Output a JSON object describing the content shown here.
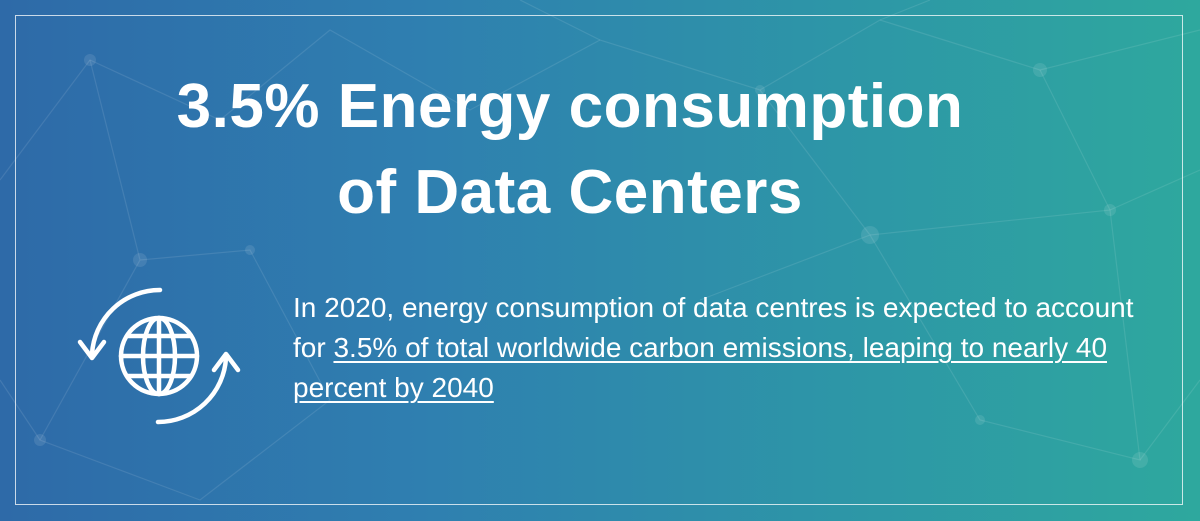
{
  "headline": {
    "line1": "3.5% Energy consumption",
    "line2": "of Data Centers"
  },
  "body": {
    "intro": "In 2020, energy consumption of data centres is expected to account for ",
    "highlight": "3.5% of total worldwide carbon emissions, leaping to nearly 40 percent by 2040"
  },
  "icon": "globe-with-circular-arrows-icon",
  "colors": {
    "gradient_left": "#2e6aa8",
    "gradient_right": "#2ea89e",
    "text": "#ffffff"
  }
}
